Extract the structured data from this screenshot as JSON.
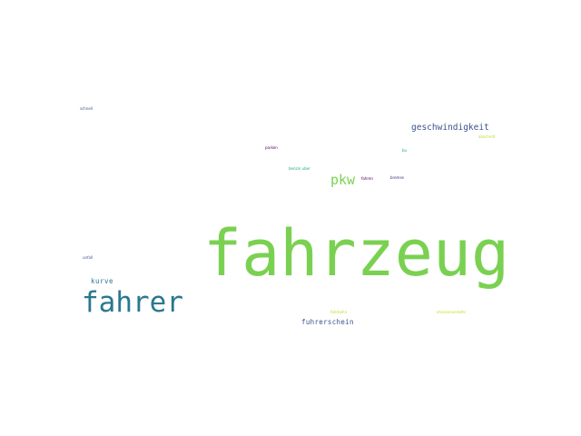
{
  "word_cloud": {
    "words": [
      {
        "key": "fahrzeug",
        "text": "fahrzeug",
        "color": "#7ad151"
      },
      {
        "key": "fahrer",
        "text": "fahrer",
        "color": "#2a788e"
      },
      {
        "key": "pkw",
        "text": "pkw",
        "color": "#7ad151"
      },
      {
        "key": "geschwindigkeit",
        "text": "geschwindigkeit",
        "color": "#3b528b"
      },
      {
        "key": "fuhrerschein",
        "text": "fuhrerschein",
        "color": "#3b528b"
      },
      {
        "key": "kurve",
        "text": "kurve",
        "color": "#2a788e"
      },
      {
        "key": "unfall",
        "text": "unfall",
        "color": "#3b528b"
      },
      {
        "key": "schnell",
        "text": "schnell",
        "color": "#3b528b"
      },
      {
        "key": "parken",
        "text": "parken",
        "color": "#440154"
      },
      {
        "key": "benzin",
        "text": "benzin uber",
        "color": "#22a884"
      },
      {
        "key": "fahren",
        "text": "fahren",
        "color": "#440154"
      },
      {
        "key": "bremse",
        "text": "bremse",
        "color": "#482878"
      },
      {
        "key": "bu",
        "text": "bu",
        "color": "#22a884"
      },
      {
        "key": "abschnitt",
        "text": "abschnitt",
        "color": "#bddf26"
      },
      {
        "key": "fahrbahn",
        "text": "fahrbahn",
        "color": "#bddf26"
      },
      {
        "key": "strassenverkehr",
        "text": "strassenverkehr",
        "color": "#bddf26"
      }
    ]
  }
}
